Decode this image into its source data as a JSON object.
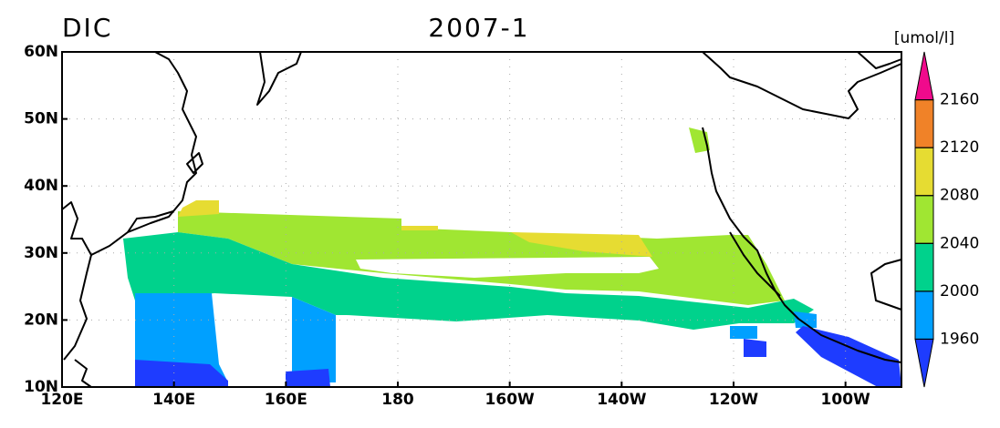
{
  "map": {
    "title_left": "DIC",
    "title_center": "2007-1",
    "lonlim": [
      120,
      270
    ],
    "latlim": [
      10,
      60
    ],
    "lon_ticks": [
      {
        "value": 120,
        "label": "120E"
      },
      {
        "value": 140,
        "label": "140E"
      },
      {
        "value": 160,
        "label": "160E"
      },
      {
        "value": 180,
        "label": "180"
      },
      {
        "value": 200,
        "label": "160W"
      },
      {
        "value": 220,
        "label": "140W"
      },
      {
        "value": 240,
        "label": "120W"
      },
      {
        "value": 260,
        "label": "100W"
      }
    ],
    "lat_ticks": [
      {
        "value": 10,
        "label": "10N"
      },
      {
        "value": 20,
        "label": "20N"
      },
      {
        "value": 30,
        "label": "30N"
      },
      {
        "value": 40,
        "label": "40N"
      },
      {
        "value": 50,
        "label": "50N"
      },
      {
        "value": 60,
        "label": "60N"
      }
    ],
    "colorbar": {
      "unit": "[umol/l]",
      "levels": [
        1960,
        2000,
        2040,
        2080,
        2120,
        2160
      ],
      "colors": [
        "#1e3cff",
        "#00a0ff",
        "#00d28c",
        "#a0e632",
        "#e6dc32",
        "#f08228",
        "#f00a8c"
      ]
    }
  }
}
